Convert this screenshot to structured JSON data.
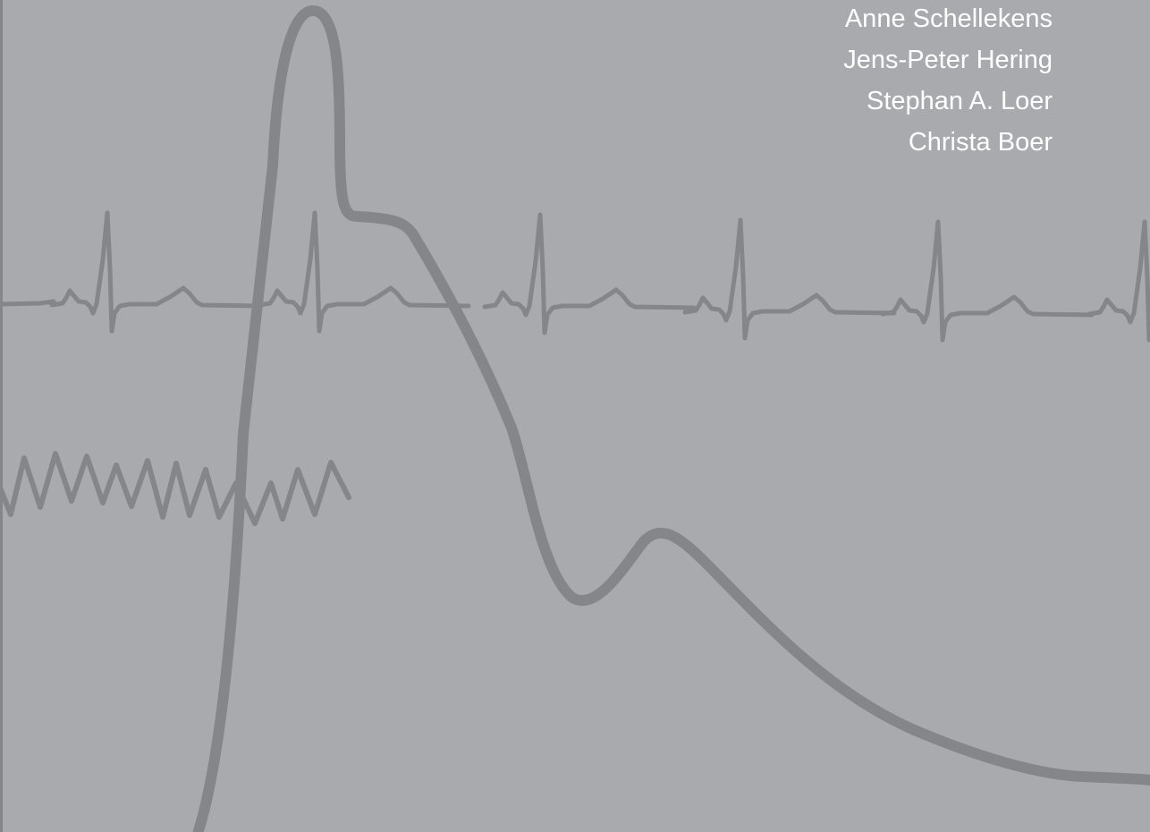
{
  "authors": [
    "Anne Schellekens",
    "Jens-Peter Hering",
    "Stephan A. Loer",
    "Christa Boer"
  ]
}
